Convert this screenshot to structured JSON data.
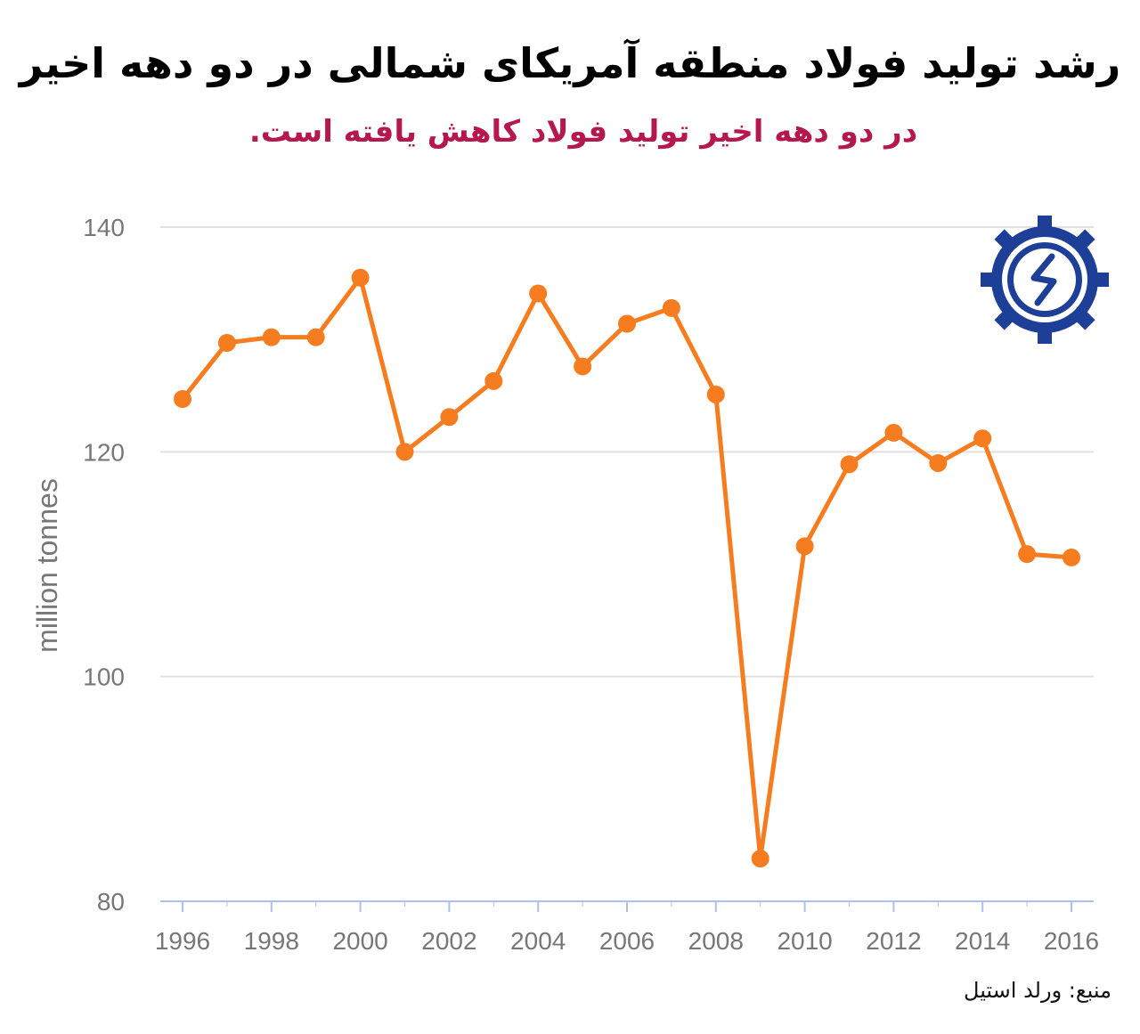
{
  "header": {
    "title": "رشد تولید فولاد منطقه آمریکای شمالی در دو دهه اخیر",
    "subtitle": "در دو دهه اخیر تولید فولاد کاهش یافته است."
  },
  "footer": {
    "source": "منبع: ورلد استیل"
  },
  "logo": {
    "icon": "steel-association-logo-icon",
    "color": "#1e3f98"
  },
  "colors": {
    "line": "#f57c1f",
    "grid": "#e0e0e0",
    "axis": "#aebff0",
    "tick_text": "#777777"
  },
  "chart_data": {
    "type": "line",
    "x": [
      1996,
      1997,
      1998,
      1999,
      2000,
      2001,
      2002,
      2003,
      2004,
      2005,
      2006,
      2007,
      2008,
      2009,
      2010,
      2011,
      2012,
      2013,
      2014,
      2015,
      2016
    ],
    "series": [
      {
        "values": [
          124.7,
          129.7,
          130.2,
          130.2,
          135.5,
          120.0,
          123.1,
          126.3,
          134.1,
          127.6,
          131.4,
          132.8,
          125.1,
          83.8,
          111.6,
          118.9,
          121.7,
          119.0,
          121.2,
          110.9,
          110.6
        ]
      }
    ],
    "xticks": [
      "1996",
      "1998",
      "2000",
      "2002",
      "2004",
      "2006",
      "2008",
      "2010",
      "2012",
      "2014",
      "2016"
    ],
    "yticks": [
      "80",
      "100",
      "120",
      "140"
    ],
    "xlabel": "",
    "ylabel": "million tonnes",
    "ylim": [
      80,
      140
    ],
    "xlim": [
      1996,
      2016
    ],
    "grid": true
  }
}
